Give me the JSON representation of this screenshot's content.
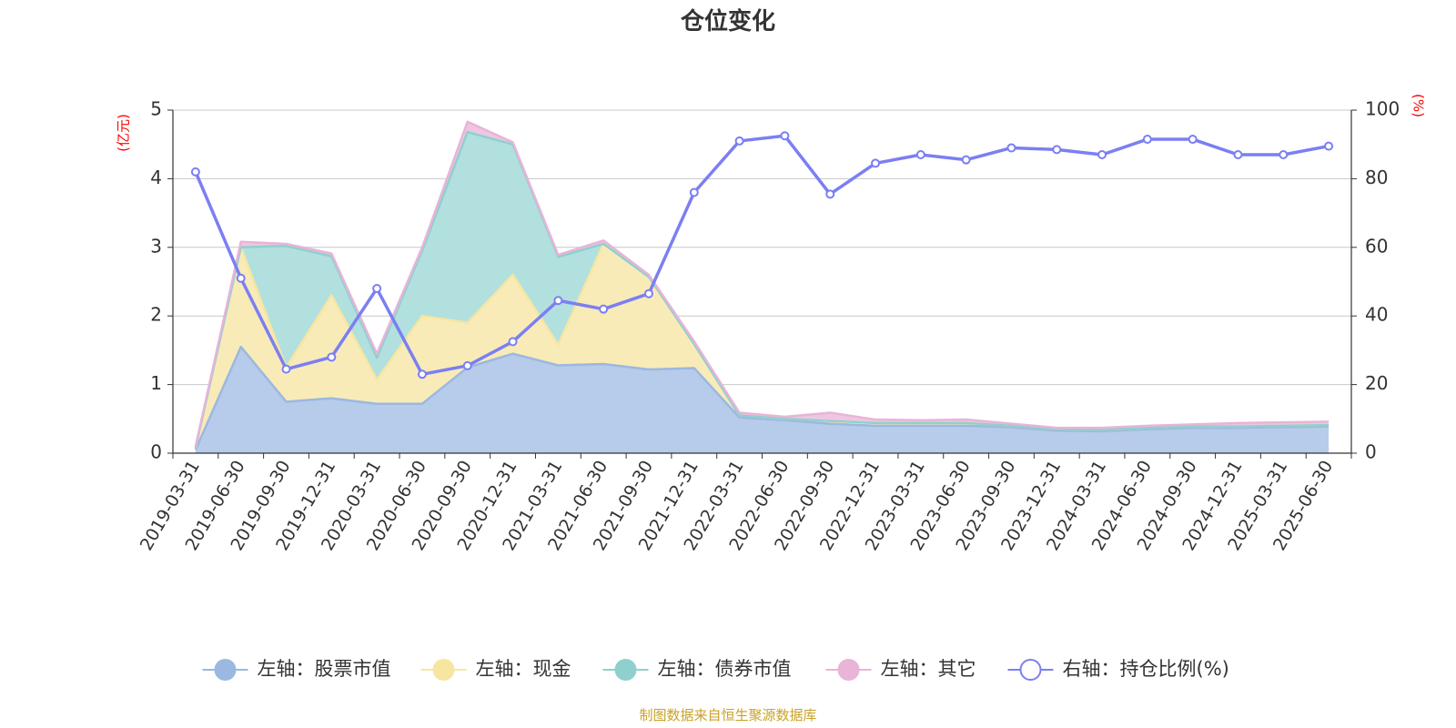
{
  "chart_data": {
    "type": "area",
    "title": "仓位变化",
    "left_unit": "(亿元)",
    "right_unit": "(%)",
    "y_left_range": [
      0,
      5
    ],
    "y_left_ticks": [
      "0",
      "1",
      "2",
      "3",
      "4",
      "5"
    ],
    "y_right_range": [
      0,
      100
    ],
    "y_right_ticks": [
      "0",
      "20",
      "40",
      "60",
      "80",
      "100"
    ],
    "grid": true,
    "legend_position": "bottom",
    "x": [
      "2019-03-31",
      "2019-06-30",
      "2019-09-30",
      "2019-12-31",
      "2020-03-31",
      "2020-06-30",
      "2020-09-30",
      "2020-12-31",
      "2021-03-31",
      "2021-06-30",
      "2021-09-30",
      "2021-12-31",
      "2022-03-31",
      "2022-06-30",
      "2022-09-30",
      "2022-12-31",
      "2023-03-31",
      "2023-06-30",
      "2023-09-30",
      "2023-12-31",
      "2024-03-31",
      "2024-06-30",
      "2024-09-30",
      "2024-12-31",
      "2025-03-31",
      "2025-06-30"
    ],
    "series": [
      {
        "name": "左轴：股票市值",
        "axis": "left",
        "type": "area",
        "color": "#9bb8e0",
        "fill": "#b7cbea",
        "values": [
          0.05,
          1.55,
          0.75,
          0.8,
          0.72,
          0.72,
          1.25,
          1.45,
          1.28,
          1.3,
          1.22,
          1.24,
          0.52,
          0.48,
          0.43,
          0.4,
          0.4,
          0.4,
          0.38,
          0.33,
          0.32,
          0.35,
          0.37,
          0.37,
          0.38,
          0.39
        ]
      },
      {
        "name": "左轴：现金",
        "axis": "left",
        "type": "area",
        "color": "#f7e6a0",
        "fill": "#f8ebb8",
        "values": [
          0.03,
          1.45,
          0.5,
          1.5,
          0.35,
          1.28,
          0.65,
          1.15,
          0.3,
          1.75,
          1.35,
          0.35,
          0.03,
          0.02,
          0.04,
          0.04,
          0.04,
          0.04,
          0.02,
          0.02,
          0.02,
          0.02,
          0.02,
          0.02,
          0.02,
          0.02
        ]
      },
      {
        "name": "左轴：债券市值",
        "axis": "left",
        "type": "area",
        "color": "#8fd0cf",
        "fill": "#b2e0df",
        "values": [
          0,
          0,
          1.77,
          0.57,
          0.32,
          0.95,
          2.78,
          1.9,
          1.28,
          0,
          0,
          0,
          0,
          0,
          0,
          0,
          0,
          0,
          0,
          0,
          0,
          0,
          0,
          0,
          0,
          0
        ]
      },
      {
        "name": "左轴：其它",
        "axis": "left",
        "type": "area",
        "color": "#e8b4d8",
        "fill": "#eec6e2",
        "values": [
          0.02,
          0.08,
          0.03,
          0.04,
          0.06,
          0.05,
          0.15,
          0.03,
          0.03,
          0.05,
          0.03,
          0.04,
          0.04,
          0.03,
          0.12,
          0.05,
          0.04,
          0.05,
          0.03,
          0.02,
          0.03,
          0.03,
          0.03,
          0.05,
          0.05,
          0.05
        ]
      },
      {
        "name": "右轴：持仓比例(%)",
        "axis": "right",
        "type": "line",
        "color": "#7b7ff2",
        "values": [
          82,
          51,
          24.5,
          28,
          48,
          23,
          25.5,
          32.5,
          44.5,
          42,
          46.5,
          76,
          91,
          92.5,
          75.5,
          84.5,
          87,
          85.5,
          89,
          88.5,
          87,
          91.5,
          91.5,
          87,
          87,
          89.5
        ]
      }
    ]
  },
  "footer": {
    "source": "制图数据来自恒生聚源数据库"
  }
}
